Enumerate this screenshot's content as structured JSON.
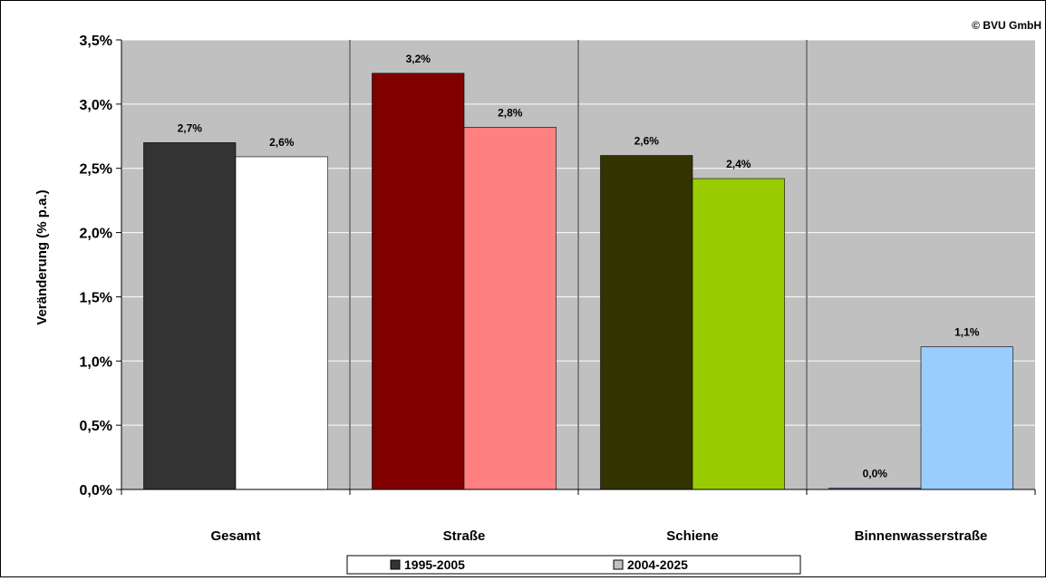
{
  "chart_data": {
    "type": "bar",
    "copyright": "© BVU GmbH",
    "ylabel": "Veränderung (% p.a.)",
    "ylim": [
      0,
      3.5
    ],
    "yticks": [
      {
        "value": 0.0,
        "label": "0,0%"
      },
      {
        "value": 0.5,
        "label": "0,5%"
      },
      {
        "value": 1.0,
        "label": "1,0%"
      },
      {
        "value": 1.5,
        "label": "1,5%"
      },
      {
        "value": 2.0,
        "label": "2,0%"
      },
      {
        "value": 2.5,
        "label": "2,5%"
      },
      {
        "value": 3.0,
        "label": "3,0%"
      },
      {
        "value": 3.5,
        "label": "3,5%"
      }
    ],
    "grid": true,
    "legend_position": "bottom",
    "categories": [
      "Gesamt",
      "Straße",
      "Schiene",
      "Binnenwasserstraße"
    ],
    "series": [
      {
        "name": "1995-2005",
        "legend_color": "#333333",
        "values": [
          2.7,
          3.24,
          2.6,
          0.01
        ],
        "labels": [
          "2,7%",
          "3,2%",
          "2,6%",
          "0,0%"
        ],
        "colors": [
          "#333333",
          "#800000",
          "#333300",
          "#6666cc"
        ]
      },
      {
        "name": "2004-2025",
        "legend_color": "#c0c0c0",
        "values": [
          2.59,
          2.82,
          2.42,
          1.11
        ],
        "labels": [
          "2,6%",
          "2,8%",
          "2,4%",
          "1,1%"
        ],
        "colors": [
          "#ffffff",
          "#ff8080",
          "#99cc00",
          "#99ccff"
        ]
      }
    ],
    "colors": {
      "plot_background": "#c0c0c0",
      "gridline": "#ffffff",
      "divider": "#808080",
      "axis": "#000000"
    }
  }
}
